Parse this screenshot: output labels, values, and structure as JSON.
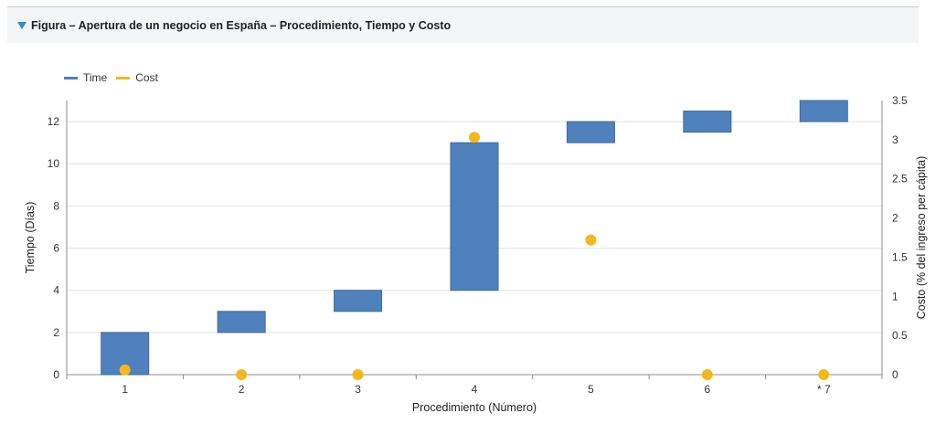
{
  "header": {
    "title": "Figura – Apertura de un negocio en España – Procedimiento, Tiempo y Costo"
  },
  "colors": {
    "time": "#4f81bd",
    "cost": "#f5b81c",
    "header_bg": "#f3f5f7",
    "toggle": "#2f8fc5"
  },
  "chart_data": {
    "type": "bar",
    "categories": [
      "1",
      "2",
      "3",
      "4",
      "5",
      "6",
      "* 7"
    ],
    "series": [
      {
        "name": "Time",
        "kind": "floating-bar",
        "axis": "left",
        "low": [
          0,
          2,
          3,
          4,
          11,
          11.5,
          12
        ],
        "high": [
          2,
          3,
          4,
          11,
          12,
          12.5,
          13
        ]
      },
      {
        "name": "Cost",
        "kind": "scatter",
        "axis": "right",
        "values": [
          0.06,
          0,
          0,
          3.03,
          1.72,
          0,
          0
        ]
      }
    ],
    "xlabel": "Procedimiento (Número)",
    "ylabel": "Tiempo (Días)",
    "y2label": "Costo (% del ingreso per cápita)",
    "ylim": [
      0,
      13
    ],
    "y2lim": [
      0,
      3.5
    ],
    "yticks": [
      "0",
      "2",
      "4",
      "6",
      "8",
      "10",
      "12"
    ],
    "y2ticks": [
      "0",
      "0.5",
      "1",
      "1.5",
      "2",
      "2.5",
      "3",
      "3.5"
    ],
    "grid": true,
    "legend_position": "top-left"
  }
}
